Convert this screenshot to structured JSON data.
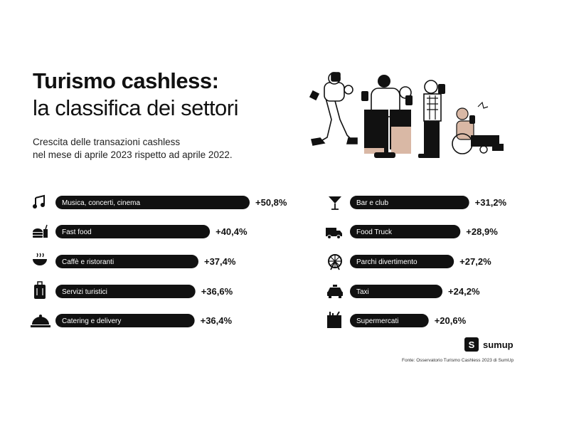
{
  "title_line1": "Turismo cashless:",
  "title_line2": "la classifica dei settori",
  "subtitle_line1": "Crescita delle transazioni cashless",
  "subtitle_line2": "nel mese di aprile 2023 rispetto ad aprile 2022.",
  "logo_text": "sumup",
  "logo_mark": "S",
  "source": "Fonte: Osservatorio Turismo Cashless 2023 di SumUp",
  "chart_data": {
    "type": "bar",
    "orientation": "horizontal",
    "unit": "%",
    "bar_color": "#111111",
    "columns": [
      {
        "items": [
          {
            "label": "Musica, concerti, cinema",
            "value": 50.8,
            "value_label": "+50,8%",
            "icon": "music-note-icon"
          },
          {
            "label": "Fast food",
            "value": 40.4,
            "value_label": "+40,4%",
            "icon": "burger-drink-icon"
          },
          {
            "label": "Caffè e ristoranti",
            "value": 37.4,
            "value_label": "+37,4%",
            "icon": "bowl-icon"
          },
          {
            "label": "Servizi turistici",
            "value": 36.6,
            "value_label": "+36,6%",
            "icon": "suitcase-icon"
          },
          {
            "label": "Catering e delivery",
            "value": 36.4,
            "value_label": "+36,4%",
            "icon": "cloche-icon"
          }
        ]
      },
      {
        "items": [
          {
            "label": "Bar e club",
            "value": 31.2,
            "value_label": "+31,2%",
            "icon": "cocktail-glass-icon"
          },
          {
            "label": "Food Truck",
            "value": 28.9,
            "value_label": "+28,9%",
            "icon": "food-truck-icon"
          },
          {
            "label": "Parchi divertimento",
            "value": 27.2,
            "value_label": "+27,2%",
            "icon": "ferris-wheel-icon"
          },
          {
            "label": "Taxi",
            "value": 24.2,
            "value_label": "+24,2%",
            "icon": "taxi-icon"
          },
          {
            "label": "Supermercati",
            "value": 20.6,
            "value_label": "+20,6%",
            "icon": "grocery-bag-icon"
          }
        ]
      }
    ]
  }
}
